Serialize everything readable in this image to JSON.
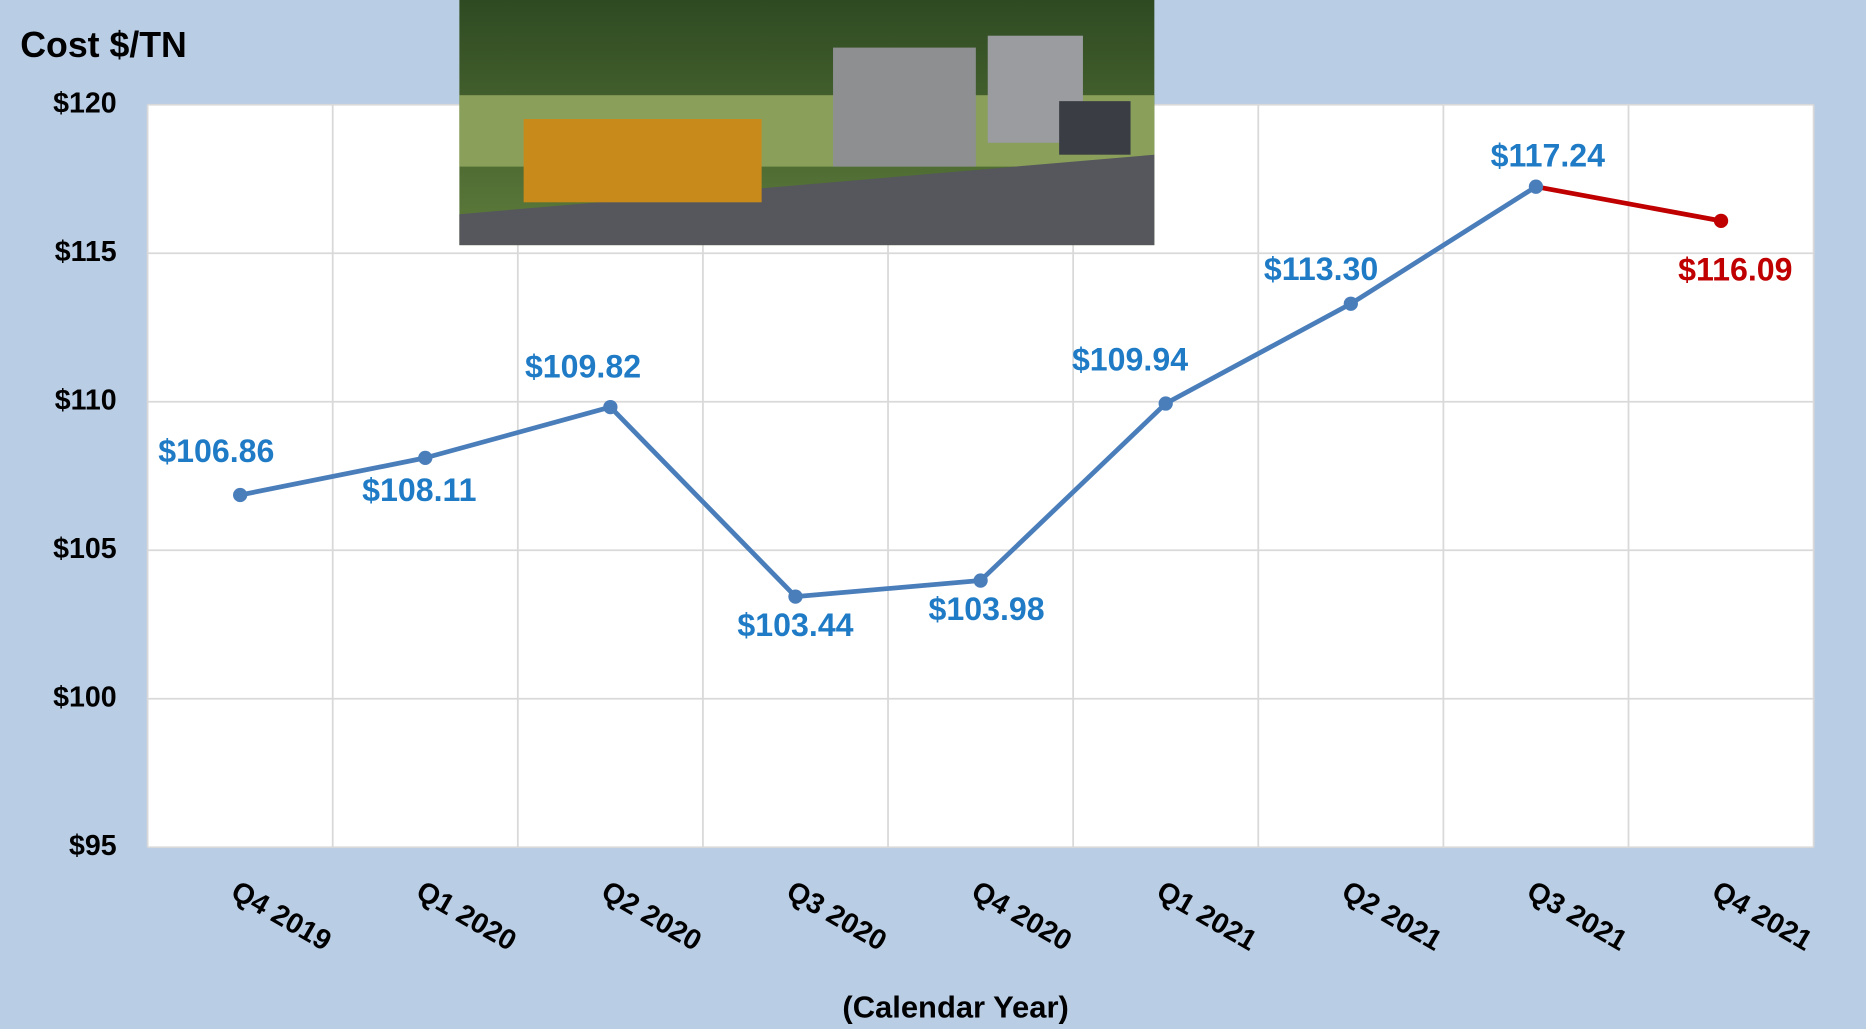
{
  "chart_data": {
    "type": "line",
    "title": "Cost $/TN",
    "x_label": "(Calendar Year)",
    "categories": [
      "Q4 2019",
      "Q1 2020",
      "Q2 2020",
      "Q3 2020",
      "Q4 2020",
      "Q1 2021",
      "Q2 2021",
      "Q3 2021",
      "Q4 2021"
    ],
    "series": [
      {
        "color": "#4a7ebb",
        "label_color": "#1f7bc5",
        "last_color": "#c00000",
        "values": [
          106.86,
          108.11,
          109.82,
          103.44,
          103.98,
          109.94,
          113.3,
          117.24,
          116.09
        ],
        "value_labels": [
          "$106.86",
          "$108.11",
          "$109.82",
          "$103.44",
          "$103.98",
          "$109.94",
          "$113.30",
          "$117.24",
          "$116.09"
        ]
      }
    ],
    "ylim": [
      95,
      120
    ],
    "yticks": [
      {
        "value": 95,
        "label": "$95"
      },
      {
        "value": 100,
        "label": "$100"
      },
      {
        "value": 105,
        "label": "$105"
      },
      {
        "value": 110,
        "label": "$110"
      },
      {
        "value": 115,
        "label": "$115"
      },
      {
        "value": 120,
        "label": "$120"
      }
    ],
    "grid": true
  }
}
